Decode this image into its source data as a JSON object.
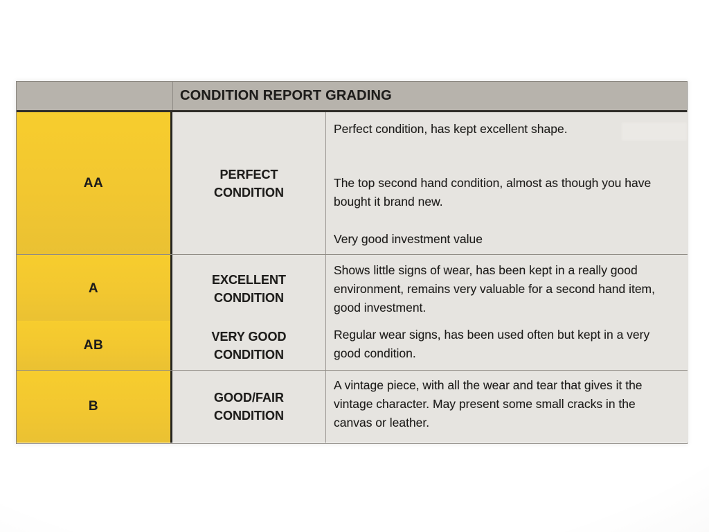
{
  "photo": {
    "paper_color": "#e8e6e3"
  },
  "table": {
    "title": "CONDITION REPORT GRADING",
    "colors": {
      "header_bg": "#b7b3ac",
      "grade_column_bg": "#f2c730",
      "cell_bg": "#e6e4e0",
      "text": "#1e1d1b"
    },
    "rows": [
      {
        "grade": "AA",
        "condition_lines": [
          "PERFECT",
          "CONDITION"
        ],
        "paragraphs": [
          "Perfect condition, has kept excellent shape.",
          "The top second hand condition, almost as though you have bought it brand new.",
          "Very good investment value"
        ]
      },
      {
        "grade": "A",
        "condition_lines": [
          "EXCELLENT",
          "CONDITION"
        ],
        "paragraphs": [
          "Shows little signs of wear, has been kept in a really good environment, remains very valuable for a second hand item, good investment."
        ]
      },
      {
        "grade": "AB",
        "condition_lines": [
          "VERY GOOD",
          "CONDITION"
        ],
        "paragraphs": [
          "Regular wear signs, has been used often but kept in a very good condition."
        ]
      },
      {
        "grade": "B",
        "condition_lines": [
          "GOOD/FAIR",
          "CONDITION"
        ],
        "paragraphs": [
          "A vintage piece, with all the wear and tear that gives it the vintage character. May present some small cracks in the canvas or leather."
        ]
      }
    ]
  }
}
